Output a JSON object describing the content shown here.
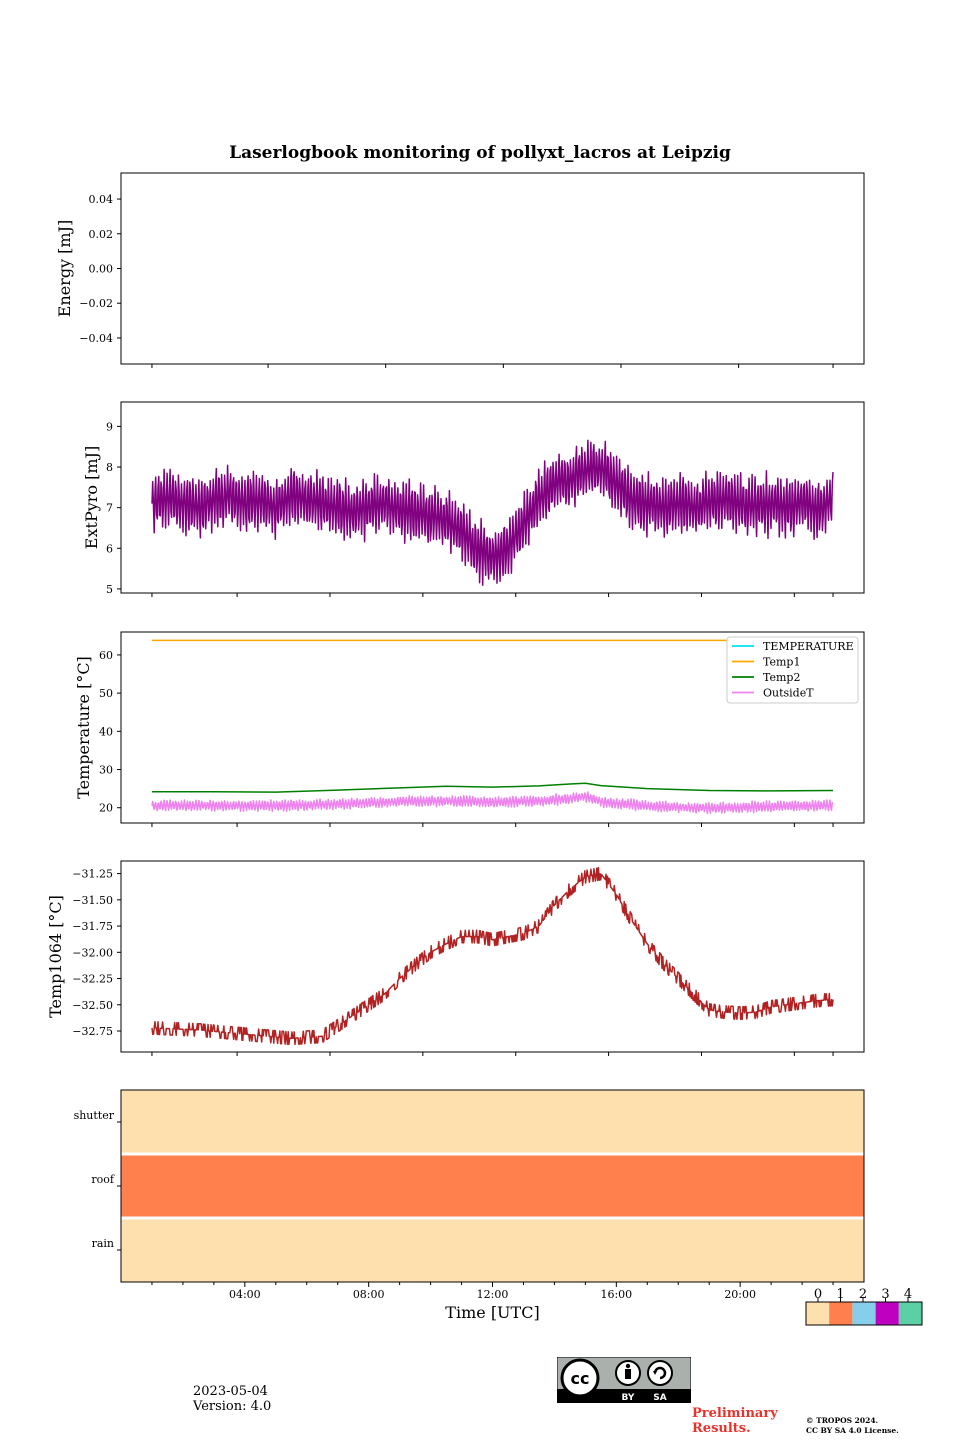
{
  "title": "Laserlogbook monitoring of pollyxt_lacros at Leipzig",
  "footer": {
    "date": "2023-05-04",
    "version": "Version: 4.0",
    "preliminary": [
      "Preliminary",
      "Results."
    ],
    "copyright": [
      "© TROPOS 2024.",
      "CC BY SA 4.0 License."
    ],
    "license_badge": {
      "icon": "cc-by-sa-icon",
      "labels": [
        "BY",
        "SA"
      ]
    }
  },
  "chart_data": [
    {
      "id": "energy",
      "type": "line",
      "ylabel": "Energy [mJ]",
      "ylim": [
        -0.055,
        0.055
      ],
      "yticks": [
        -0.04,
        -0.02,
        0.0,
        0.02,
        0.04
      ],
      "ytick_labels": [
        "−0.04",
        "−0.02",
        "0.00",
        "0.02",
        "0.04"
      ],
      "series": []
    },
    {
      "id": "extpyro",
      "type": "line",
      "ylabel": "ExtPyro [mJ]",
      "ylim": [
        4.9,
        9.6
      ],
      "yticks": [
        5,
        6,
        7,
        8,
        9
      ],
      "ytick_labels": [
        "5",
        "6",
        "7",
        "8",
        "9"
      ],
      "series": [
        {
          "color": "#800080",
          "x": [
            1.0,
            1.5,
            2.0,
            2.5,
            3.0,
            3.5,
            4.0,
            4.5,
            5.0,
            5.5,
            6.0,
            6.5,
            7.0,
            7.5,
            8.0,
            8.5,
            9.0,
            9.5,
            10.0,
            10.5,
            11.0,
            11.5,
            12.0,
            12.5,
            13.0,
            13.5,
            14.0,
            14.5,
            15.0,
            15.5,
            16.0,
            16.5,
            17.0,
            17.5,
            18.0,
            18.5,
            19.0,
            19.5,
            20.0,
            20.5,
            21.0,
            21.5,
            22.0,
            22.5,
            23.0
          ],
          "y": [
            7.1,
            7.2,
            7.1,
            7.0,
            7.2,
            7.3,
            7.1,
            7.2,
            7.0,
            7.3,
            7.2,
            7.1,
            7.0,
            6.9,
            7.0,
            7.1,
            6.9,
            6.9,
            6.8,
            6.7,
            6.4,
            6.0,
            5.8,
            6.0,
            6.6,
            7.2,
            7.6,
            7.7,
            7.9,
            8.0,
            7.6,
            7.2,
            7.1,
            7.0,
            7.1,
            7.0,
            7.1,
            7.2,
            7.1,
            7.0,
            7.1,
            7.0,
            7.1,
            7.0,
            7.2
          ],
          "oscillation": 0.65
        }
      ]
    },
    {
      "id": "temperature",
      "type": "line",
      "ylabel": "Temperature [°C]",
      "ylim": [
        16,
        66
      ],
      "yticks": [
        20,
        30,
        40,
        50,
        60
      ],
      "ytick_labels": [
        "20",
        "30",
        "40",
        "50",
        "60"
      ],
      "legend_position": "top-right",
      "series": [
        {
          "name": "TEMPERATURE",
          "color": "#00e5ee",
          "x": [],
          "y": []
        },
        {
          "name": "Temp1",
          "color": "#ffa500",
          "x": [
            1.0,
            23.0
          ],
          "y": [
            63.8,
            63.8
          ]
        },
        {
          "name": "Temp2",
          "color": "#008000",
          "x": [
            1.0,
            3.0,
            5.0,
            7.0,
            9.0,
            10.5,
            12.0,
            13.5,
            14.5,
            15.0,
            15.5,
            17.0,
            19.0,
            21.0,
            23.0
          ],
          "y": [
            24.2,
            24.2,
            24.1,
            24.6,
            25.2,
            25.6,
            25.4,
            25.7,
            26.2,
            26.4,
            25.8,
            25.0,
            24.5,
            24.4,
            24.5
          ]
        },
        {
          "name": "OutsideT",
          "color": "#ee82ee",
          "x": [
            1.0,
            3.0,
            5.0,
            7.0,
            9.0,
            10.5,
            12.0,
            13.5,
            14.5,
            15.0,
            15.5,
            17.0,
            19.0,
            21.0,
            23.0
          ],
          "y": [
            20.5,
            20.6,
            20.5,
            21.0,
            21.6,
            21.8,
            21.5,
            21.8,
            22.4,
            23.0,
            21.6,
            20.4,
            19.9,
            20.3,
            20.6
          ],
          "oscillation": 1.2
        }
      ]
    },
    {
      "id": "temp1064",
      "type": "line",
      "ylabel": "Temp1064 [°C]",
      "ylim": [
        -32.95,
        -31.13
      ],
      "yticks": [
        -32.75,
        -32.5,
        -32.25,
        -32.0,
        -31.75,
        -31.5,
        -31.25
      ],
      "ytick_labels": [
        "−32.75",
        "−32.50",
        "−32.25",
        "−32.00",
        "−31.75",
        "−31.50",
        "−31.25"
      ],
      "series": [
        {
          "color": "#b22222",
          "x": [
            1.0,
            2.5,
            4.0,
            5.5,
            6.5,
            7.0,
            7.5,
            8.0,
            8.5,
            9.0,
            9.5,
            10.0,
            10.5,
            11.0,
            11.5,
            12.0,
            12.5,
            13.0,
            13.5,
            14.0,
            14.5,
            15.0,
            15.5,
            16.0,
            16.5,
            17.0,
            17.5,
            18.0,
            18.5,
            19.0,
            19.5,
            20.0,
            20.5,
            21.0,
            21.5,
            22.0,
            22.5,
            23.0
          ],
          "y": [
            -32.72,
            -32.74,
            -32.78,
            -32.82,
            -32.8,
            -32.7,
            -32.6,
            -32.5,
            -32.4,
            -32.25,
            -32.12,
            -32.0,
            -31.92,
            -31.85,
            -31.85,
            -31.88,
            -31.85,
            -31.82,
            -31.75,
            -31.55,
            -31.4,
            -31.28,
            -31.25,
            -31.45,
            -31.7,
            -31.92,
            -32.1,
            -32.25,
            -32.4,
            -32.55,
            -32.57,
            -32.58,
            -32.57,
            -32.52,
            -32.5,
            -32.48,
            -32.46,
            -32.45
          ],
          "oscillation": 0.12
        }
      ]
    },
    {
      "id": "flags",
      "type": "heatmap",
      "rows": [
        "shutter",
        "roof",
        "rain"
      ],
      "values": [
        0,
        1,
        0
      ],
      "xlabel": "Time [UTC]",
      "xlim": [
        0,
        24
      ],
      "xticks": [
        4,
        8,
        12,
        16,
        20
      ],
      "xtick_labels": [
        "04:00",
        "08:00",
        "12:00",
        "16:00",
        "20:00"
      ],
      "colorbar": {
        "ticks": [
          "0",
          "1",
          "2",
          "3",
          "4"
        ],
        "colors": [
          "#fde0ad",
          "#ff7f4d",
          "#87ceeb",
          "#c000c0",
          "#5ccfa5"
        ]
      }
    }
  ]
}
